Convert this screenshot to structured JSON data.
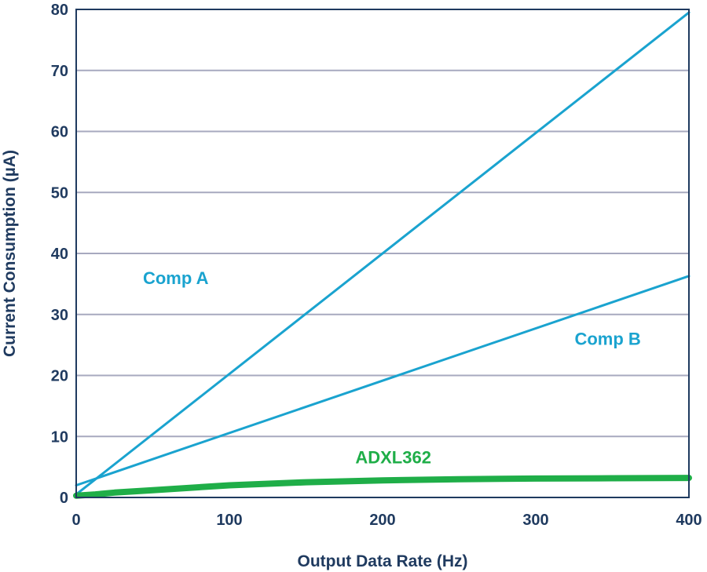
{
  "chart_data": {
    "type": "line",
    "title": "",
    "xlabel": "Output Data Rate (Hz)",
    "ylabel": "Current Consumption (µA)",
    "xlim": [
      0,
      400
    ],
    "ylim": [
      0,
      80
    ],
    "xticks": [
      0,
      100,
      200,
      300,
      400
    ],
    "yticks": [
      0,
      10,
      20,
      30,
      40,
      50,
      60,
      70,
      80
    ],
    "grid": "horizontal",
    "series": [
      {
        "name": "Comp A",
        "color": "#1aa3cf",
        "x": [
          0,
          400
        ],
        "y": [
          0.5,
          79.5
        ]
      },
      {
        "name": "Comp B",
        "color": "#1aa3cf",
        "x": [
          0,
          400
        ],
        "y": [
          2,
          36.3
        ]
      },
      {
        "name": "ADXL362",
        "color": "#1fae48",
        "x": [
          0,
          12.5,
          25,
          50,
          100,
          150,
          200,
          250,
          300,
          350,
          400
        ],
        "y": [
          0.3,
          0.5,
          0.8,
          1.2,
          2.0,
          2.5,
          2.8,
          3.0,
          3.1,
          3.15,
          3.2
        ]
      }
    ],
    "annotations": [
      {
        "text": "Comp A",
        "x": 65,
        "y": 35,
        "color": "#1aa3cf"
      },
      {
        "text": "Comp B",
        "x": 347,
        "y": 25,
        "color": "#1aa3cf"
      },
      {
        "text": "ADXL362",
        "x": 207,
        "y": 5.6,
        "color": "#1fae48"
      }
    ]
  }
}
